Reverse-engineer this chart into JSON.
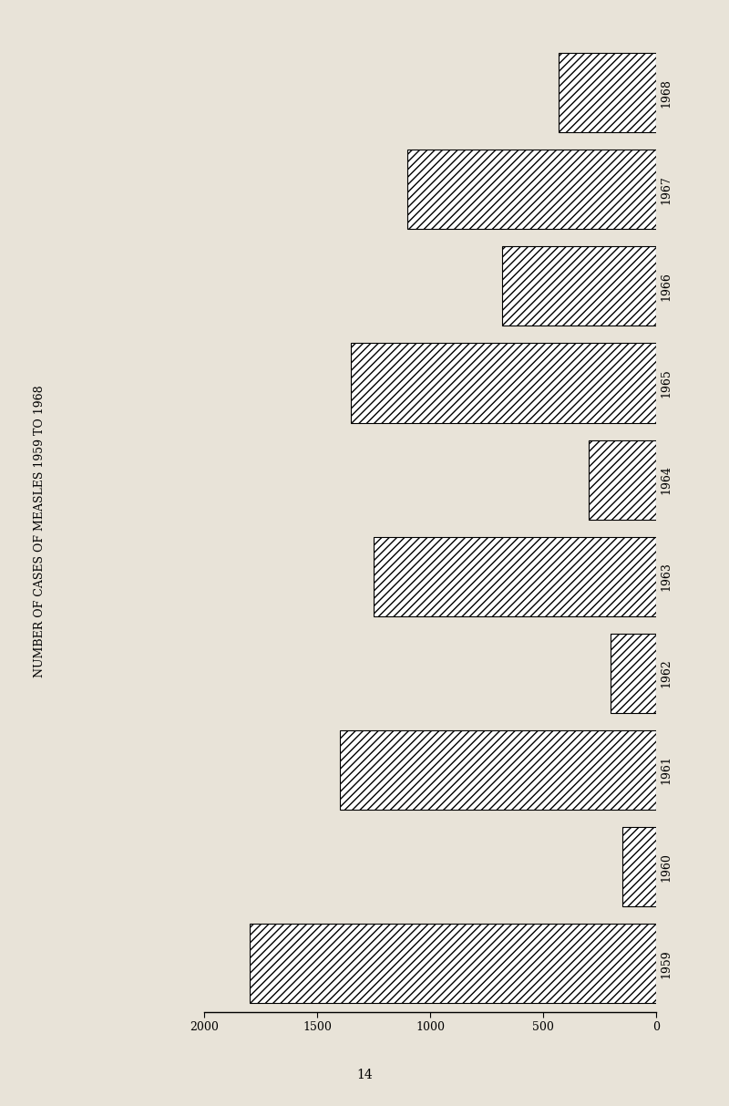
{
  "title": "NUMBER OF CASES OF MEASLES 1959 TO 1968",
  "page_number": "14",
  "years": [
    "1959",
    "1960",
    "1961",
    "1962",
    "1963",
    "1964",
    "1965",
    "1966",
    "1967",
    "1968"
  ],
  "values": [
    1800,
    150,
    1400,
    200,
    1250,
    300,
    1350,
    680,
    1100,
    430
  ],
  "xlim_left": 2000,
  "xlim_right": 0,
  "xticks": [
    0,
    500,
    1000,
    1500,
    2000
  ],
  "xtick_labels": [
    "0",
    "500",
    "1000",
    "1500",
    "2000"
  ],
  "bar_color": "white",
  "hatch": "////",
  "background_color": "#e8e3d8",
  "edge_color": "black",
  "bar_height": 0.82,
  "title_fontsize": 9,
  "tick_fontsize": 9,
  "year_fontsize": 9
}
